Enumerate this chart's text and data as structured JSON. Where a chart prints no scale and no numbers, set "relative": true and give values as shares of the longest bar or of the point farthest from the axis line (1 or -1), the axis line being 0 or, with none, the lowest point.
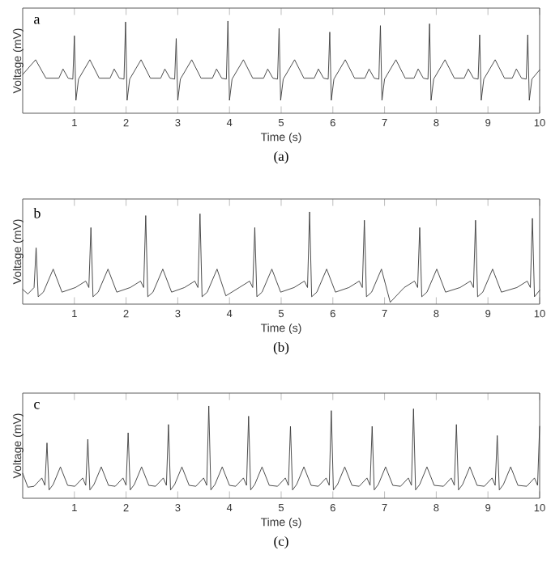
{
  "chart_data": [
    {
      "type": "line",
      "xlabel": "Time (s)",
      "ylabel": "Voltage (mV)",
      "annotations": [
        "a",
        "(a)"
      ],
      "relative": true,
      "xlim": [
        0,
        10
      ],
      "xticks": [
        1,
        2,
        3,
        4,
        5,
        6,
        7,
        8,
        9,
        10
      ],
      "color": "#3a3a3a",
      "x": [
        0,
        0.25,
        0.45,
        0.7,
        0.78,
        0.88,
        0.97,
        1.0,
        1.03,
        1.08,
        1.3,
        1.48,
        1.69,
        1.77,
        1.87,
        1.96,
        1.99,
        2.02,
        2.07,
        2.29,
        2.47,
        2.67,
        2.75,
        2.85,
        2.94,
        2.97,
        3.0,
        3.05,
        3.27,
        3.45,
        3.67,
        3.75,
        3.85,
        3.94,
        3.97,
        4.0,
        4.05,
        4.27,
        4.45,
        4.66,
        4.74,
        4.84,
        4.93,
        4.96,
        4.99,
        5.04,
        5.26,
        5.44,
        5.64,
        5.72,
        5.82,
        5.91,
        5.94,
        5.97,
        6.02,
        6.24,
        6.42,
        6.62,
        6.7,
        6.8,
        6.89,
        6.92,
        6.95,
        7.0,
        7.22,
        7.4,
        7.57,
        7.65,
        7.75,
        7.84,
        7.87,
        7.9,
        7.95,
        8.17,
        8.35,
        8.54,
        8.62,
        8.72,
        8.81,
        8.84,
        8.87,
        8.92,
        9.14,
        9.32,
        9.47,
        9.55,
        9.65,
        9.74,
        9.77,
        9.8,
        9.85,
        10
      ],
      "values": [
        0.42,
        0.58,
        0.38,
        0.38,
        0.48,
        0.38,
        0.37,
        0.84,
        0.14,
        0.37,
        0.58,
        0.38,
        0.38,
        0.48,
        0.38,
        0.37,
        0.99,
        0.14,
        0.37,
        0.58,
        0.38,
        0.38,
        0.48,
        0.38,
        0.37,
        0.81,
        0.14,
        0.37,
        0.58,
        0.38,
        0.38,
        0.48,
        0.38,
        0.37,
        1.0,
        0.14,
        0.37,
        0.58,
        0.38,
        0.38,
        0.48,
        0.38,
        0.37,
        0.92,
        0.14,
        0.37,
        0.58,
        0.38,
        0.38,
        0.48,
        0.38,
        0.37,
        0.88,
        0.14,
        0.37,
        0.58,
        0.38,
        0.38,
        0.48,
        0.38,
        0.37,
        0.95,
        0.14,
        0.37,
        0.58,
        0.38,
        0.38,
        0.48,
        0.38,
        0.37,
        0.97,
        0.14,
        0.37,
        0.58,
        0.38,
        0.38,
        0.48,
        0.38,
        0.37,
        0.85,
        0.14,
        0.37,
        0.58,
        0.38,
        0.38,
        0.48,
        0.38,
        0.37,
        0.85,
        0.14,
        0.37,
        0.47
      ]
    },
    {
      "type": "line",
      "xlabel": "Time (s)",
      "ylabel": "Voltage (mV)",
      "annotations": [
        "b",
        "(b)"
      ],
      "relative": true,
      "xlim": [
        0,
        10
      ],
      "xticks": [
        1,
        2,
        3,
        4,
        5,
        6,
        7,
        8,
        9,
        10
      ],
      "color": "#3a3a3a",
      "x": [
        0,
        0.1,
        0.22,
        0.26,
        0.3,
        0.4,
        0.59,
        0.76,
        1.02,
        1.22,
        1.28,
        1.32,
        1.36,
        1.46,
        1.65,
        1.82,
        2.08,
        2.28,
        2.34,
        2.38,
        2.42,
        2.52,
        2.71,
        2.88,
        3.13,
        3.33,
        3.39,
        3.43,
        3.47,
        3.57,
        3.76,
        3.93,
        4.19,
        4.39,
        4.45,
        4.49,
        4.53,
        4.63,
        4.82,
        4.99,
        5.25,
        5.45,
        5.51,
        5.55,
        5.59,
        5.69,
        5.88,
        6.05,
        6.31,
        6.51,
        6.57,
        6.61,
        6.65,
        6.75,
        6.94,
        7.11,
        7.38,
        7.58,
        7.64,
        7.68,
        7.72,
        7.82,
        8.01,
        8.18,
        8.46,
        8.66,
        8.72,
        8.76,
        8.8,
        8.9,
        9.09,
        9.26,
        9.56,
        9.76,
        9.82,
        9.86,
        9.9,
        10
      ],
      "values": [
        0.16,
        0.11,
        0.18,
        0.61,
        0.08,
        0.13,
        0.38,
        0.13,
        0.18,
        0.25,
        0.18,
        0.83,
        0.08,
        0.13,
        0.38,
        0.13,
        0.18,
        0.25,
        0.18,
        0.96,
        0.08,
        0.13,
        0.38,
        0.13,
        0.18,
        0.25,
        0.18,
        0.98,
        0.08,
        0.13,
        0.38,
        0.09,
        0.18,
        0.25,
        0.18,
        0.83,
        0.08,
        0.13,
        0.38,
        0.13,
        0.18,
        0.25,
        0.18,
        1.0,
        0.08,
        0.13,
        0.38,
        0.13,
        0.18,
        0.25,
        0.18,
        0.91,
        0.08,
        0.13,
        0.38,
        0.02,
        0.18,
        0.25,
        0.18,
        0.83,
        0.08,
        0.13,
        0.38,
        0.13,
        0.18,
        0.25,
        0.18,
        0.91,
        0.08,
        0.13,
        0.38,
        0.13,
        0.18,
        0.25,
        0.18,
        0.93,
        0.08,
        0.15
      ]
    },
    {
      "type": "line",
      "xlabel": "Time (s)",
      "ylabel": "Voltage (mV)",
      "annotations": [
        "c",
        "(c)"
      ],
      "relative": true,
      "xlim": [
        0,
        10
      ],
      "xticks": [
        1,
        2,
        3,
        4,
        5,
        6,
        7,
        8,
        9,
        10
      ],
      "color": "#3a3a3a",
      "x": [
        0,
        0.1,
        0.22,
        0.37,
        0.43,
        0.47,
        0.51,
        0.59,
        0.73,
        0.87,
        1.01,
        1.16,
        1.22,
        1.26,
        1.3,
        1.38,
        1.52,
        1.66,
        1.79,
        1.94,
        2.0,
        2.04,
        2.08,
        2.16,
        2.3,
        2.44,
        2.57,
        2.72,
        2.78,
        2.82,
        2.86,
        2.94,
        3.08,
        3.22,
        3.35,
        3.5,
        3.56,
        3.6,
        3.64,
        3.72,
        3.86,
        4.0,
        4.12,
        4.27,
        4.33,
        4.37,
        4.41,
        4.49,
        4.63,
        4.77,
        4.93,
        5.08,
        5.14,
        5.18,
        5.22,
        5.3,
        5.44,
        5.58,
        5.72,
        5.87,
        5.93,
        5.97,
        6.01,
        6.09,
        6.23,
        6.37,
        6.51,
        6.66,
        6.72,
        6.76,
        6.8,
        6.88,
        7.02,
        7.16,
        7.31,
        7.46,
        7.52,
        7.56,
        7.6,
        7.68,
        7.82,
        7.96,
        8.14,
        8.29,
        8.35,
        8.39,
        8.43,
        8.51,
        8.65,
        8.79,
        8.93,
        9.08,
        9.14,
        9.18,
        9.22,
        9.3,
        9.44,
        9.58,
        9.75,
        9.9,
        9.96,
        10
      ],
      "values": [
        0.27,
        0.12,
        0.13,
        0.22,
        0.14,
        0.6,
        0.09,
        0.15,
        0.34,
        0.14,
        0.13,
        0.22,
        0.14,
        0.64,
        0.09,
        0.15,
        0.34,
        0.14,
        0.13,
        0.22,
        0.14,
        0.71,
        0.09,
        0.15,
        0.34,
        0.14,
        0.13,
        0.22,
        0.14,
        0.8,
        0.09,
        0.15,
        0.34,
        0.14,
        0.13,
        0.22,
        0.14,
        1.0,
        0.09,
        0.15,
        0.34,
        0.14,
        0.13,
        0.22,
        0.14,
        0.89,
        0.09,
        0.15,
        0.34,
        0.14,
        0.13,
        0.22,
        0.14,
        0.78,
        0.09,
        0.15,
        0.34,
        0.14,
        0.13,
        0.22,
        0.14,
        0.95,
        0.09,
        0.15,
        0.34,
        0.14,
        0.13,
        0.22,
        0.14,
        0.78,
        0.09,
        0.15,
        0.34,
        0.14,
        0.13,
        0.22,
        0.14,
        0.97,
        0.09,
        0.15,
        0.34,
        0.14,
        0.13,
        0.22,
        0.14,
        0.8,
        0.09,
        0.15,
        0.34,
        0.14,
        0.13,
        0.22,
        0.14,
        0.68,
        0.09,
        0.15,
        0.34,
        0.14,
        0.13,
        0.22,
        0.14,
        0.78
      ]
    }
  ]
}
